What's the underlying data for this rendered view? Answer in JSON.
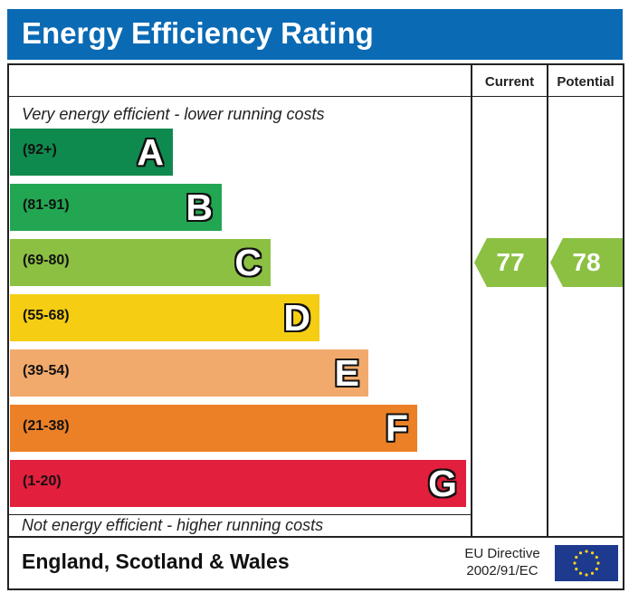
{
  "title": "Energy Efficiency Rating",
  "columns": {
    "current": "Current",
    "potential": "Potential"
  },
  "captions": {
    "top": "Very energy efficient - lower running costs",
    "bottom": "Not energy efficient - higher running costs"
  },
  "footer": {
    "region": "England, Scotland & Wales",
    "directive_line1": "EU Directive",
    "directive_line2": "2002/91/EC"
  },
  "chart_data": {
    "type": "bar",
    "title": "Energy Efficiency Rating",
    "bands": [
      {
        "letter": "A",
        "range": "(92+)",
        "min": 92,
        "max": 100,
        "color": "#0f8a4e"
      },
      {
        "letter": "B",
        "range": "(81-91)",
        "min": 81,
        "max": 91,
        "color": "#23a651"
      },
      {
        "letter": "C",
        "range": "(69-80)",
        "min": 69,
        "max": 80,
        "color": "#8cc043"
      },
      {
        "letter": "D",
        "range": "(55-68)",
        "min": 55,
        "max": 68,
        "color": "#f5cd13"
      },
      {
        "letter": "E",
        "range": "(39-54)",
        "min": 39,
        "max": 54,
        "color": "#f2aa6c"
      },
      {
        "letter": "F",
        "range": "(21-38)",
        "min": 21,
        "max": 38,
        "color": "#ec8027"
      },
      {
        "letter": "G",
        "range": "(1-20)",
        "min": 1,
        "max": 20,
        "color": "#e21f3d"
      }
    ],
    "current": {
      "label": "Current",
      "value": 77,
      "band": "C",
      "color": "#8cc043"
    },
    "potential": {
      "label": "Potential",
      "value": 78,
      "band": "C",
      "color": "#8cc043"
    }
  }
}
